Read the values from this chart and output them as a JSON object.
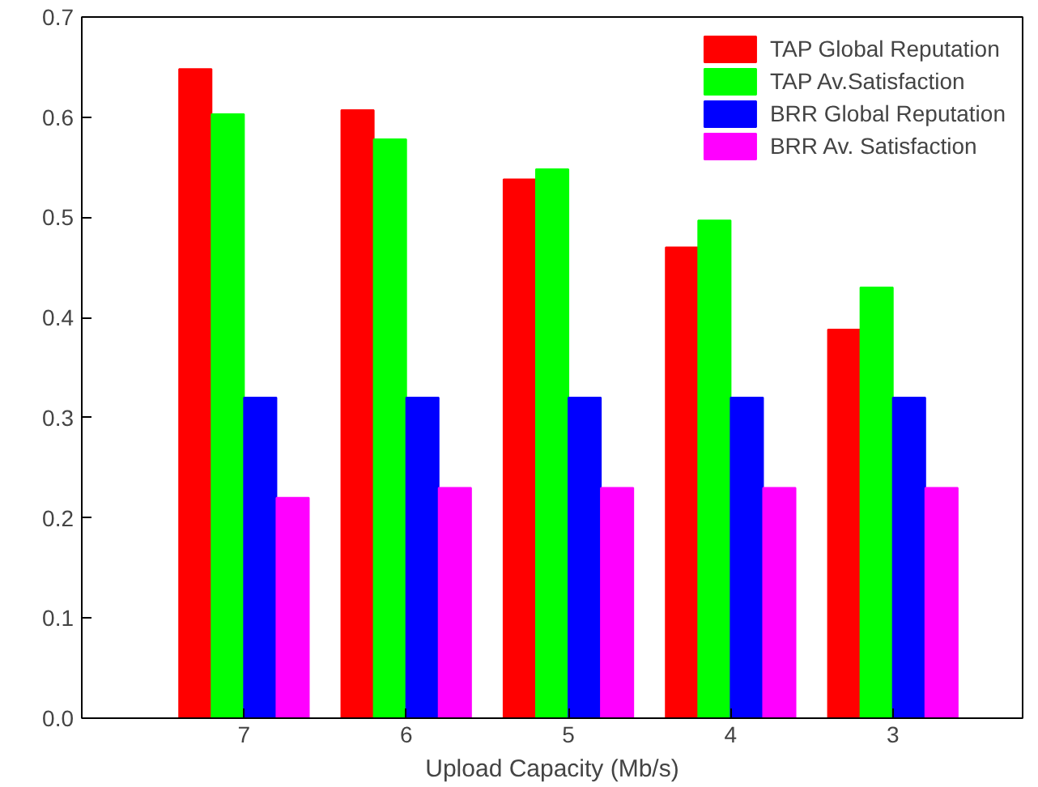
{
  "chart_data": {
    "type": "bar",
    "xlabel": "Upload Capacity (Mb/s)",
    "categories": [
      "7",
      "6",
      "5",
      "4",
      "3"
    ],
    "series": [
      {
        "name": "TAP Global Reputation",
        "color": "#ff0000",
        "values": [
          0.648,
          0.607,
          0.538,
          0.47,
          0.388
        ]
      },
      {
        "name": "TAP Av.Satisfaction",
        "color": "#00ff00",
        "values": [
          0.603,
          0.578,
          0.548,
          0.497,
          0.43
        ]
      },
      {
        "name": "BRR Global Reputation",
        "color": "#0000ff",
        "values": [
          0.32,
          0.32,
          0.32,
          0.32,
          0.32
        ]
      },
      {
        "name": "BRR Av. Satisfaction",
        "color": "#ff00ff",
        "values": [
          0.22,
          0.23,
          0.23,
          0.23,
          0.23
        ]
      }
    ],
    "ylim": [
      0,
      0.7
    ],
    "yticks": [
      {
        "value": 0,
        "label": "0.0"
      },
      0.1,
      0.2,
      0.3,
      0.4,
      0.5,
      0.6,
      0.7
    ],
    "grid": false,
    "legend": "top right"
  }
}
